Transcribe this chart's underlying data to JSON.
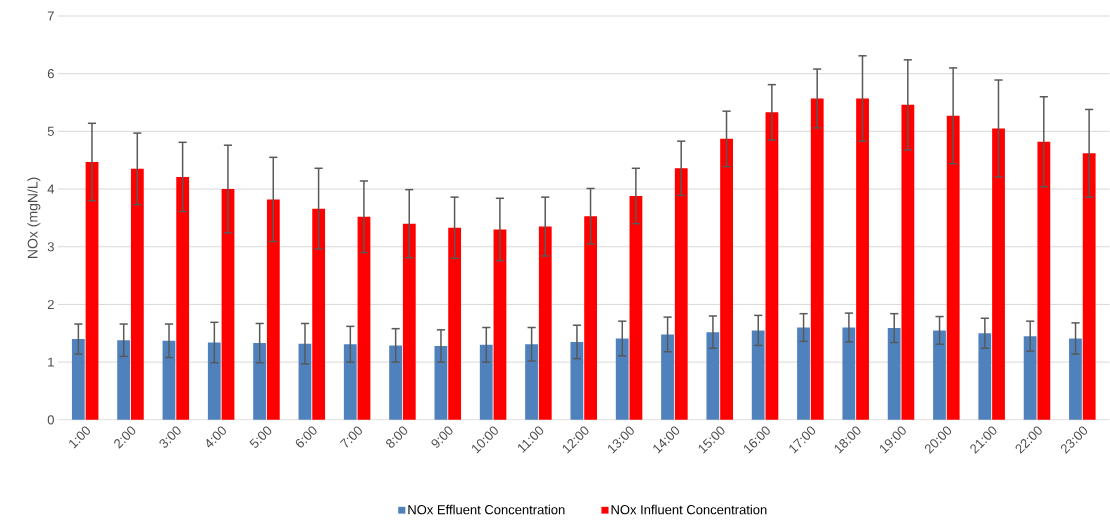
{
  "chart_data": {
    "type": "bar",
    "ylabel": "NOx (mgN/L)",
    "categories": [
      "1:00",
      "2:00",
      "3:00",
      "4:00",
      "5:00",
      "6:00",
      "7:00",
      "8:00",
      "9:00",
      "10:00",
      "11:00",
      "12:00",
      "13:00",
      "14:00",
      "15:00",
      "16:00",
      "17:00",
      "18:00",
      "19:00",
      "20:00",
      "21:00",
      "22:00",
      "23:00"
    ],
    "series": [
      {
        "name": "NOx Effluent Concentration",
        "color": "#4f81bd",
        "values": [
          1.4,
          1.38,
          1.37,
          1.34,
          1.33,
          1.32,
          1.31,
          1.29,
          1.28,
          1.3,
          1.31,
          1.35,
          1.41,
          1.48,
          1.52,
          1.55,
          1.6,
          1.6,
          1.59,
          1.55,
          1.5,
          1.45,
          1.41
        ],
        "errors": [
          0.26,
          0.28,
          0.29,
          0.35,
          0.34,
          0.35,
          0.31,
          0.29,
          0.28,
          0.3,
          0.29,
          0.29,
          0.3,
          0.3,
          0.28,
          0.26,
          0.24,
          0.25,
          0.25,
          0.24,
          0.26,
          0.26,
          0.27
        ]
      },
      {
        "name": "NOx Influent Concentration",
        "color": "#ff0000",
        "values": [
          4.47,
          4.35,
          4.21,
          4.0,
          3.82,
          3.66,
          3.52,
          3.4,
          3.33,
          3.3,
          3.35,
          3.53,
          3.88,
          4.36,
          4.87,
          5.33,
          5.57,
          5.57,
          5.46,
          5.27,
          5.05,
          4.82,
          4.62
        ],
        "errors": [
          0.67,
          0.62,
          0.6,
          0.76,
          0.73,
          0.7,
          0.62,
          0.59,
          0.53,
          0.54,
          0.51,
          0.48,
          0.48,
          0.47,
          0.48,
          0.48,
          0.51,
          0.74,
          0.78,
          0.83,
          0.84,
          0.78,
          0.76
        ]
      }
    ],
    "ylim": [
      0,
      7
    ],
    "yticks": [
      0,
      1,
      2,
      3,
      4,
      5,
      6,
      7
    ],
    "grid": "y",
    "legend": "bottom"
  }
}
